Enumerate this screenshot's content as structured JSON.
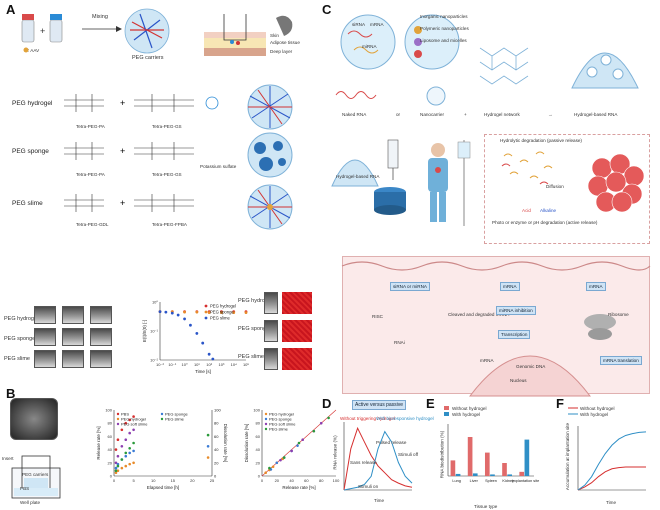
{
  "panel_a": {
    "letter": "A",
    "aav_label": ": AAV",
    "mixing": "Mixing",
    "peg_carriers": "PEG carriers",
    "skin": "Skin",
    "adipose": "Adipose tissue",
    "deep": "Deep layer",
    "rows": [
      {
        "name": "PEG hydrogel",
        "left": "Tetra-PEG-PA",
        "right": "Tetra-PEG-GS"
      },
      {
        "name": "PEG sponge",
        "left": "Tetra-PEG-PA",
        "right": "Tetra-PEG-GS",
        "extra": "Potassium sulfate"
      },
      {
        "name": "PEG slime",
        "left": "Tetra-PEG-GDL",
        "right": "Tetra-PEG-FPBA"
      }
    ],
    "photo_labels": [
      "PEG hydrogel",
      "PEG sponge",
      "PEG slime"
    ],
    "micro_labels": [
      "PEG hydrogel",
      "PEG sponge",
      "PEG slime"
    ]
  },
  "panel_b": {
    "letter": "B",
    "insert": "Insert",
    "peg_carriers": "PEG carriers",
    "pbs": "PBS",
    "well_plate": "Well plate"
  },
  "panel_c": {
    "letter": "C",
    "top_labels": [
      "Naked RNA",
      "or",
      "Nanocarrier",
      "+",
      "Hydrogel network",
      "→",
      "Hydrogel-based RNA"
    ],
    "naked_items": [
      "siRNA",
      "mRNA",
      "miRNA"
    ],
    "nano_items": [
      "Inorganic nanoparticles",
      "Polymeric nanoparticles",
      "Liposome and micelles"
    ],
    "hydrogel_rna": "Hydrogel-based RNA",
    "degradation_passive": "Hydrolytic degradation (passive release)",
    "diffusion": "Diffusion",
    "acid": "Acid",
    "alkaline": "Alkaline",
    "degradation_active": "Photo or enzyme or pH degradation (active release)",
    "cell_labels": [
      "siRNA or miRNA",
      "RISC",
      "RNAi",
      "Cleaved and degraded mRNA",
      "mRNA",
      "miRNA inhibition",
      "Transcription",
      "mRNA",
      "Genomic DNA",
      "Nucleus",
      "mRNA",
      "Ribosome",
      "mRNA translation"
    ]
  },
  "panel_d": {
    "letter": "D",
    "title_box": "Active versus passive",
    "ylabel": "RNA release (%)",
    "xlabel": "Time",
    "annotations": [
      "Without triggering hydrogel",
      "With bioresponsive hydrogel",
      "Pulsed release",
      "Stimuli off",
      "Sans release",
      "Stimuli on"
    ]
  },
  "panel_e": {
    "letter": "E",
    "legend": [
      "Without hydrogel",
      "With hydrogel"
    ],
    "ylabel": "RNA biodistribution (%)",
    "xlabel": "Tissue type",
    "colors": {
      "without": "#e06a6a",
      "with": "#2f8fc6"
    }
  },
  "panel_f": {
    "letter": "F",
    "legend": [
      "Without hydrogel",
      "With hydrogel"
    ],
    "ylabel": "Accumulation at implantation site",
    "xlabel": "Time"
  },
  "chart_data": [
    {
      "type": "scatter",
      "id": "a-modulus",
      "xlabel": "Time [s]",
      "ylabel": "E(t)/E(0) [-]",
      "x_scale": "log",
      "xlim": [
        0.01,
        100000
      ],
      "ylim": [
        0,
        1.2
      ],
      "x_ticks": [
        "10⁻²",
        "10⁻¹",
        "10⁰",
        "10¹",
        "10²",
        "10³",
        "10⁴",
        "10⁵"
      ],
      "y_ticks": [
        "10⁰",
        "10⁻¹",
        "10⁻²"
      ],
      "legend": [
        "PEG hydrogel",
        "PEG sponge",
        "PEG slime"
      ],
      "series": [
        {
          "name": "PEG hydrogel",
          "color": "#d62f2f",
          "x": [
            0.01,
            0.1,
            1,
            10,
            100,
            1000,
            10000,
            100000
          ],
          "y": [
            1,
            1,
            1,
            1,
            1,
            1,
            1,
            1
          ]
        },
        {
          "name": "PEG sponge",
          "color": "#e88b2a",
          "x": [
            0.01,
            0.1,
            1,
            10,
            100,
            1000,
            10000,
            100000
          ],
          "y": [
            1,
            1,
            0.99,
            0.99,
            0.98,
            0.98,
            0.98,
            0.98
          ]
        },
        {
          "name": "PEG slime",
          "color": "#2a55c8",
          "x": [
            0.01,
            0.03,
            0.1,
            0.3,
            1,
            3,
            10,
            30,
            100,
            200
          ],
          "y": [
            1,
            0.99,
            0.97,
            0.93,
            0.85,
            0.72,
            0.55,
            0.35,
            0.12,
            0.02
          ]
        }
      ]
    },
    {
      "type": "scatter",
      "id": "b-release",
      "xlabel": "Elapsed time [h]",
      "ylabel": "Release rate [%]",
      "xlim": [
        0,
        25
      ],
      "ylim": [
        0,
        100
      ],
      "x_ticks": [
        "0",
        "5",
        "10",
        "15",
        "20",
        "25"
      ],
      "y_ticks": [
        "0",
        "20",
        "40",
        "60",
        "80",
        "100"
      ],
      "y2label": "Dissolution rate [%]",
      "y2_ticks": [
        "0",
        "20",
        "40",
        "60",
        "80",
        "100"
      ],
      "legend": [
        "PBS",
        "PEG hydrogel",
        "PEG soft slime",
        "PEG sponge",
        "PEG slime"
      ],
      "series": [
        {
          "name": "PBS",
          "color": "#d62f2f",
          "x": [
            0.5,
            1,
            2,
            3,
            4,
            5
          ],
          "y": [
            40,
            55,
            70,
            80,
            85,
            90
          ]
        },
        {
          "name": "PEG hydrogel",
          "color": "#e88b2a",
          "x": [
            0.5,
            1,
            2,
            3,
            4,
            5,
            24
          ],
          "y": [
            5,
            8,
            12,
            15,
            18,
            20,
            28
          ]
        },
        {
          "name": "PEG soft slime",
          "color": "#8c3fb0",
          "x": [
            0.5,
            1,
            2,
            3,
            4,
            5
          ],
          "y": [
            20,
            30,
            45,
            55,
            65,
            70
          ]
        },
        {
          "name": "PEG sponge",
          "color": "#3a7bd5",
          "x": [
            0.5,
            1,
            2,
            3,
            4,
            5,
            24
          ],
          "y": [
            12,
            18,
            25,
            30,
            35,
            38,
            45
          ]
        },
        {
          "name": "PEG slime",
          "color": "#2a9a3a",
          "x": [
            0.5,
            1,
            2,
            3,
            4,
            5,
            24
          ],
          "y": [
            8,
            15,
            25,
            35,
            42,
            50,
            62
          ]
        }
      ]
    },
    {
      "type": "scatter",
      "id": "b-dissolution",
      "xlabel": "Release rate [%]",
      "ylabel": "Dissolution rate [%]",
      "xlim": [
        0,
        100
      ],
      "ylim": [
        0,
        100
      ],
      "x_ticks": [
        "0",
        "20",
        "40",
        "60",
        "80",
        "100"
      ],
      "y_ticks": [
        "0",
        "20",
        "40",
        "60",
        "80",
        "100"
      ],
      "legend": [
        "PEG hydrogel",
        "PEG sponge",
        "PEG soft slime",
        "PEG slime"
      ],
      "series": [
        {
          "name": "PEG hydrogel",
          "color": "#e88b2a",
          "x": [
            5,
            10,
            15,
            20,
            28
          ],
          "y": [
            5,
            9,
            14,
            20,
            26
          ]
        },
        {
          "name": "PEG sponge",
          "color": "#3a7bd5",
          "x": [
            12,
            20,
            30,
            40,
            48
          ],
          "y": [
            10,
            20,
            28,
            38,
            46
          ]
        },
        {
          "name": "PEG soft slime",
          "color": "#8c3fb0",
          "x": [
            25,
            40,
            55,
            70,
            80
          ],
          "y": [
            24,
            38,
            55,
            68,
            80
          ]
        },
        {
          "name": "PEG slime",
          "color": "#2a9a3a",
          "x": [
            10,
            30,
            50,
            70,
            90
          ],
          "y": [
            12,
            28,
            50,
            68,
            88
          ]
        }
      ]
    },
    {
      "type": "line",
      "id": "d-release",
      "series": [
        {
          "name": "Without triggering hydrogel",
          "color": "#d62f2f",
          "x": [
            0,
            1,
            2,
            3,
            4,
            5,
            6,
            7,
            8,
            9,
            10
          ],
          "y": [
            0,
            60,
            90,
            70,
            50,
            35,
            25,
            15,
            10,
            6,
            4
          ]
        },
        {
          "name": "With bioresponsive hydrogel",
          "color": "#2f8fc6",
          "x": [
            0,
            1,
            2,
            3,
            4,
            5,
            6,
            7,
            8,
            9,
            10
          ],
          "y": [
            0,
            2,
            4,
            8,
            20,
            60,
            85,
            70,
            40,
            20,
            10
          ]
        }
      ]
    },
    {
      "type": "bar",
      "id": "e-biodistribution",
      "categories": [
        "Lung",
        "Liver",
        "Spleen",
        "Kidney",
        "Implantation site"
      ],
      "series": [
        {
          "name": "Without hydrogel",
          "color": "#e06a6a",
          "values": [
            30,
            75,
            45,
            25,
            8
          ]
        },
        {
          "name": "With hydrogel",
          "color": "#2f8fc6",
          "values": [
            4,
            5,
            3,
            3,
            70
          ]
        }
      ],
      "ylim": [
        0,
        100
      ]
    },
    {
      "type": "line",
      "id": "f-accumulation",
      "series": [
        {
          "name": "Without hydrogel",
          "color": "#d62f2f",
          "x": [
            0,
            1,
            2,
            3,
            4,
            5,
            6,
            7,
            8,
            9,
            10
          ],
          "y": [
            0,
            5,
            12,
            22,
            30,
            35,
            37,
            38,
            38,
            38,
            38
          ]
        },
        {
          "name": "With hydrogel",
          "color": "#2f8fc6",
          "x": [
            0,
            1,
            2,
            3,
            4,
            5,
            6,
            7,
            8,
            9,
            10
          ],
          "y": [
            0,
            8,
            22,
            42,
            60,
            74,
            84,
            90,
            93,
            95,
            96
          ]
        }
      ]
    }
  ]
}
